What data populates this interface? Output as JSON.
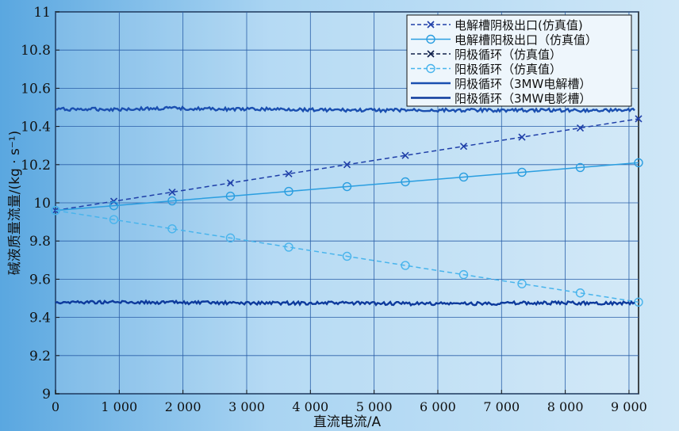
{
  "chart_data": {
    "type": "line",
    "title": "",
    "xlabel": "直流电流/A",
    "ylabel": "碱液质量流量/(kg · s⁻¹)",
    "xlim": [
      0,
      9150
    ],
    "ylim": [
      9,
      11
    ],
    "xticks": [
      0,
      1000,
      2000,
      3000,
      4000,
      5000,
      6000,
      7000,
      8000,
      9000
    ],
    "xtick_labels": [
      "0",
      "1 000",
      "2 000",
      "3 000",
      "4 000",
      "5 000",
      "6 000",
      "7 000",
      "8 000",
      "9 000"
    ],
    "yticks": [
      9,
      9.2,
      9.4,
      9.6,
      9.8,
      10,
      10.2,
      10.4,
      10.6,
      10.8,
      11
    ],
    "ytick_labels": [
      "9",
      "9.2",
      "9.4",
      "9.6",
      "9.8",
      "10",
      "10.2",
      "10.4",
      "10.6",
      "10.8",
      "11"
    ],
    "legend_position": "top-right",
    "x": [
      0,
      915,
      1830,
      2745,
      3660,
      4575,
      5490,
      6405,
      7320,
      8235,
      9150
    ],
    "series": [
      {
        "name": "电解槽阴极出口(仿真值)",
        "style": "dashed",
        "marker": "x",
        "color": "#1f3fa8",
        "values": [
          9.96,
          10.008,
          10.056,
          10.104,
          10.152,
          10.2,
          10.248,
          10.296,
          10.344,
          10.392,
          10.44
        ]
      },
      {
        "name": "电解槽阳极出口（仿真值）",
        "style": "solid",
        "marker": "o",
        "color": "#2a9ee0",
        "values": [
          9.96,
          9.985,
          10.01,
          10.035,
          10.06,
          10.085,
          10.11,
          10.135,
          10.16,
          10.185,
          10.21
        ]
      },
      {
        "name": "阴极循环（仿真值）",
        "style": "dashed",
        "marker": "x",
        "color": "#10204a",
        "values": [
          9.96,
          10.008,
          10.056,
          10.104,
          10.152,
          10.2,
          10.248,
          10.296,
          10.344,
          10.392,
          10.44
        ]
      },
      {
        "name": "阳极循环（仿真值）",
        "style": "dashed",
        "marker": "o",
        "color": "#48b4ec",
        "values": [
          9.96,
          9.912,
          9.864,
          9.816,
          9.768,
          9.72,
          9.672,
          9.624,
          9.576,
          9.528,
          9.48
        ]
      },
      {
        "name": "阴极循环（3MW电解槽）",
        "style": "solid",
        "marker": "none",
        "color": "#1a4fb0",
        "values": [
          10.49,
          10.49,
          10.495,
          10.49,
          10.49,
          10.485,
          10.485,
          10.485,
          10.485,
          10.485,
          10.485
        ]
      },
      {
        "name": "阳极循环（3MW电影槽）",
        "style": "solid",
        "marker": "none",
        "color": "#0d3a9c",
        "values": [
          9.48,
          9.48,
          9.478,
          9.475,
          9.475,
          9.475,
          9.472,
          9.472,
          9.475,
          9.475,
          9.475
        ]
      }
    ]
  }
}
